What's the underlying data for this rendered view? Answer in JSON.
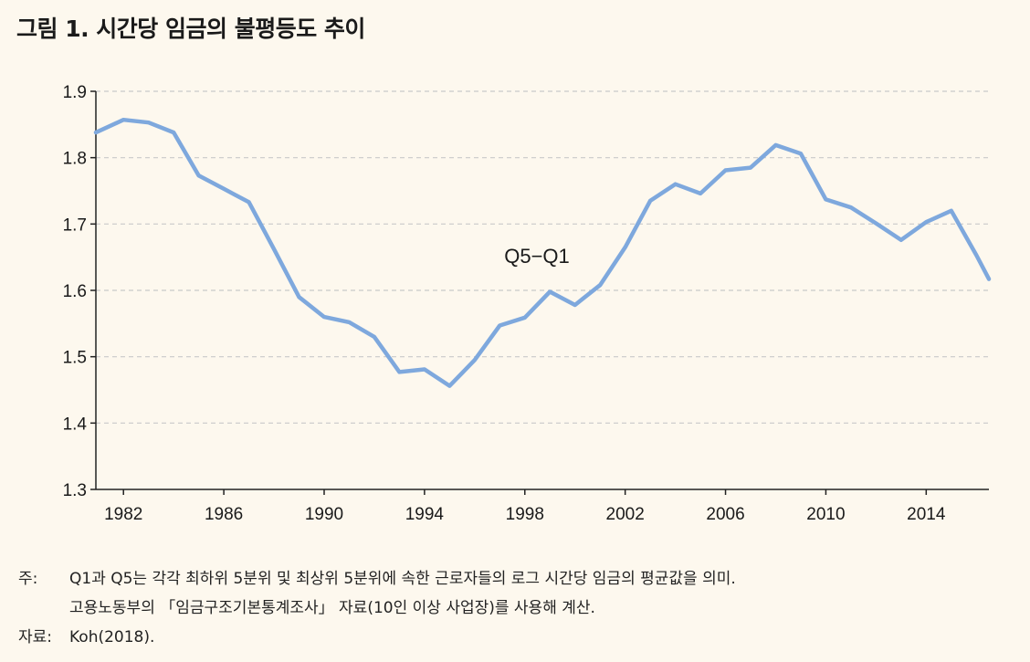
{
  "title": "그림 1.  시간당 임금의 불평등도 추이",
  "chart_data": {
    "type": "line",
    "title": "그림 1.  시간당 임금의 불평등도 추이",
    "ylim": [
      1.3,
      1.9
    ],
    "xlim": [
      1980.9,
      2016.5
    ],
    "yticks": [
      "1.3",
      "1.4",
      "1.5",
      "1.6",
      "1.7",
      "1.8",
      "1.9"
    ],
    "xticks": [
      "1982",
      "1986",
      "1990",
      "1994",
      "1998",
      "2002",
      "2006",
      "2010",
      "2014"
    ],
    "grid": true,
    "series": [
      {
        "name": "Q5−Q1",
        "color": "#7ea8dd",
        "x": [
          1980.9,
          1982,
          1983,
          1984,
          1985,
          1986,
          1987,
          1988,
          1989,
          1990,
          1991,
          1992,
          1993,
          1994,
          1995,
          1996,
          1997,
          1998,
          1999,
          2000,
          2001,
          2002,
          2003,
          2004,
          2005,
          2006,
          2007,
          2008,
          2009,
          2010,
          2011,
          2012,
          2013,
          2014,
          2015,
          2016,
          2016.5
        ],
        "y": [
          1.838,
          1.857,
          1.853,
          1.838,
          1.773,
          1.753,
          1.733,
          1.662,
          1.59,
          1.56,
          1.552,
          1.53,
          1.477,
          1.481,
          1.456,
          1.495,
          1.547,
          1.559,
          1.598,
          1.578,
          1.608,
          1.665,
          1.735,
          1.76,
          1.746,
          1.781,
          1.785,
          1.819,
          1.806,
          1.737,
          1.725,
          1.701,
          1.676,
          1.703,
          1.72,
          1.653,
          1.617
        ]
      }
    ]
  },
  "notes": {
    "note_label": "주:",
    "note_line1": "Q1과 Q5는 각각 최하위 5분위 및 최상위 5분위에 속한 근로자들의 로그 시간당 임금의 평균값을 의미.",
    "note_line2": "고용노동부의 「임금구조기본통계조사」 자료(10인 이상 사업장)를 사용해 계산.",
    "source_label": "자료:",
    "source_text": "Koh(2018)."
  }
}
